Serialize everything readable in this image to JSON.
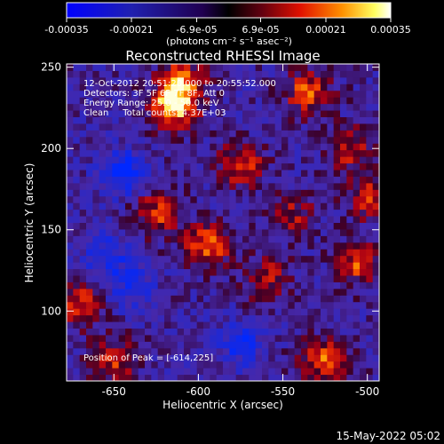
{
  "colorbar": {
    "tick_labels": [
      "-0.00035",
      "-0.00021",
      "-6.9e-05",
      "6.9e-05",
      "0.00021",
      "0.00035"
    ],
    "tick_values": [
      -0.00035,
      -0.00021,
      -6.9e-05,
      6.9e-05,
      0.00021,
      0.00035
    ],
    "range": [
      -0.00035,
      0.00035
    ],
    "unit_label": "(photons cm⁻² s⁻¹ asec⁻²)"
  },
  "chart_data": {
    "type": "heatmap",
    "title": "Reconstructed RHESSI Image",
    "xlabel": "Heliocentric X (arcsec)",
    "ylabel": "Heliocentric Y (arcsec)",
    "xlim": [
      -678,
      -493
    ],
    "ylim": [
      57,
      252
    ],
    "xticks": [
      -650,
      -600,
      -550,
      -500
    ],
    "xtick_labels": [
      "-650",
      "-600",
      "-550",
      "-500"
    ],
    "yticks": [
      100,
      150,
      200,
      250
    ],
    "ytick_labels": [
      "100",
      "150",
      "200",
      "250"
    ],
    "colormap": "blue-black-red-yellow-white",
    "peak_position": [
      -614,
      225
    ],
    "bright_regions": [
      {
        "x": -615,
        "y": 225,
        "level": 1.0
      },
      {
        "x": -610,
        "y": 240,
        "level": 0.95
      },
      {
        "x": -535,
        "y": 235,
        "level": 0.8
      },
      {
        "x": -575,
        "y": 190,
        "level": 0.75
      },
      {
        "x": -625,
        "y": 160,
        "level": 0.7
      },
      {
        "x": -595,
        "y": 140,
        "level": 0.85
      },
      {
        "x": -560,
        "y": 120,
        "level": 0.6
      },
      {
        "x": -505,
        "y": 130,
        "level": 0.75
      },
      {
        "x": -510,
        "y": 200,
        "level": 0.6
      },
      {
        "x": -670,
        "y": 105,
        "level": 0.7
      },
      {
        "x": -650,
        "y": 70,
        "level": 0.65
      },
      {
        "x": -525,
        "y": 70,
        "level": 0.85
      },
      {
        "x": -500,
        "y": 170,
        "level": 0.6
      },
      {
        "x": -545,
        "y": 160,
        "level": 0.55
      }
    ],
    "dark_regions": [
      {
        "x": -645,
        "y": 185,
        "level": -0.8
      },
      {
        "x": -655,
        "y": 135,
        "level": -0.55
      },
      {
        "x": -640,
        "y": 115,
        "level": -0.5
      },
      {
        "x": -575,
        "y": 80,
        "level": -0.55
      }
    ]
  },
  "annotations": {
    "time_range": "12-Oct-2012 20:51:20.000 to 20:55:52.000",
    "detectors": "Detectors: 3F 5F 6F 7F 8F, Att 0",
    "energy": "Energy Range: 25.0 - 50.0 keV",
    "clean": "Clean     Total counts: 4.37E+03",
    "peak": "Position of Peak = [-614,225]"
  },
  "footer": {
    "timestamp": "15-May-2022 05:02"
  }
}
